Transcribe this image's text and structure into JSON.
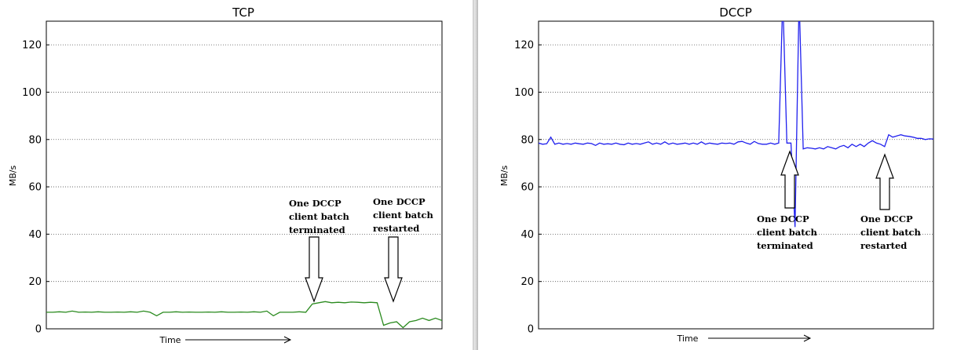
{
  "chart_data": [
    {
      "type": "line",
      "title": "TCP",
      "xlabel": "Time",
      "ylabel": "MB/s",
      "ylim": [
        0,
        130
      ],
      "yticks": [
        0,
        20,
        40,
        60,
        80,
        100,
        120
      ],
      "grid": "horizontal-dotted",
      "line_color": "#2a8a1e",
      "series": [
        {
          "values": [
            7,
            7,
            7.2,
            7,
            7.5,
            7,
            7.1,
            7,
            7.2,
            7,
            7,
            7.1,
            7,
            7.2,
            7,
            7.5,
            7,
            5.5,
            7,
            7,
            7.2,
            7,
            7.1,
            7,
            7,
            7.1,
            7,
            7.2,
            7,
            7,
            7.1,
            7,
            7.2,
            7,
            7.5,
            5.5,
            7,
            7,
            7,
            7.2,
            7,
            10.5,
            11,
            11.5,
            11,
            11.2,
            11,
            11.3,
            11.2,
            11,
            11.2,
            11,
            1.5,
            2.5,
            3,
            0.5,
            3,
            3.5,
            4.5,
            3.5,
            4.5,
            3.5
          ]
        }
      ],
      "annotations": [
        {
          "lines": [
            "One DCCP",
            "client batch",
            "terminated"
          ],
          "arrow_direction": "down",
          "at_index": 40
        },
        {
          "lines": [
            "One DCCP",
            "client batch",
            "restarted"
          ],
          "arrow_direction": "down",
          "at_index": 51
        }
      ]
    },
    {
      "type": "line",
      "title": "DCCP",
      "xlabel": "Time",
      "ylabel": "MB/s",
      "ylim": [
        0,
        130
      ],
      "yticks": [
        0,
        20,
        40,
        60,
        80,
        100,
        120
      ],
      "grid": "horizontal-dotted",
      "line_color": "#2020ee",
      "series": [
        {
          "values": [
            78.5,
            78,
            78.2,
            81,
            78,
            78.5,
            78,
            78.3,
            78,
            78.5,
            78.2,
            78,
            78.5,
            78.3,
            77.5,
            78.5,
            78,
            78.2,
            78,
            78.5,
            78,
            77.8,
            78.5,
            78,
            78.3,
            78,
            78.5,
            79,
            78,
            78.5,
            78,
            79,
            78,
            78.5,
            78,
            78.2,
            78.5,
            78,
            78.5,
            78,
            79,
            78,
            78.5,
            78.2,
            78,
            78.5,
            78.3,
            78.5,
            78,
            79,
            79.2,
            78.5,
            78,
            79.2,
            78.3,
            78,
            78,
            78.5,
            78,
            78.5,
            140,
            78.5,
            78.5,
            43,
            140,
            76,
            76.5,
            76.3,
            76,
            76.5,
            76,
            77,
            76.5,
            76,
            77,
            77.5,
            76.5,
            78,
            77,
            78,
            77,
            78.5,
            79.5,
            78.5,
            78,
            77,
            82,
            81,
            81.5,
            82,
            81.5,
            81.3,
            81,
            80.5,
            80.5,
            80,
            80.3,
            80.2
          ]
        }
      ],
      "annotations": [
        {
          "lines": [
            "One DCCP",
            "client batch",
            "terminated"
          ],
          "arrow_direction": "up",
          "at_index": 58
        },
        {
          "lines": [
            "One DCCP",
            "client batch",
            "restarted"
          ],
          "arrow_direction": "up",
          "at_index": 80
        }
      ]
    }
  ]
}
